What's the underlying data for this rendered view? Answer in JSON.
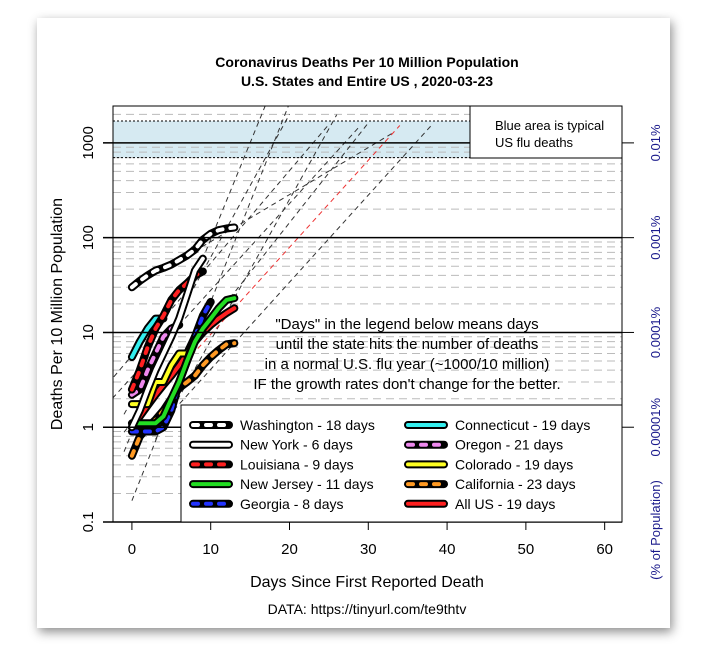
{
  "chart_data": {
    "type": "line",
    "title": "Coronavirus Deaths Per 10 Million Population",
    "subtitle": "U.S. States and Entire US , 2020-03-23",
    "xlabel": "Days Since First Reported Death",
    "ylabel": "Deaths Per 10 Million Population",
    "y2label": "(% of Population)",
    "source": "DATA: https://tinyurl.com/te9thtv",
    "yscale": "log",
    "xlim": [
      -2.4,
      62.2
    ],
    "ylim": [
      0.1,
      2450
    ],
    "x_ticks": [
      "0",
      "10",
      "20",
      "30",
      "40",
      "50",
      "60"
    ],
    "y_ticks": [
      "0.1",
      "1",
      "10",
      "100",
      "1000"
    ],
    "y2_ticks": [
      {
        "value": 1000,
        "label": "0.01%"
      },
      {
        "value": 100,
        "label": "0.001%"
      },
      {
        "value": 10,
        "label": "0.0001%"
      },
      {
        "value": 1,
        "label": "0.00001%"
      }
    ],
    "flu_band": [
      700,
      1700
    ],
    "flu_band_color": "#d6eaf2",
    "flu_note": [
      "Blue area is typical",
      "US flu deaths"
    ],
    "annotation": [
      "\"Days\" in the legend below means days",
      "until the state hits the number of deaths",
      "in a normal U.S. flu year (~1000/10 million)",
      "IF the growth rates don't change for the better."
    ],
    "projection_target": 1000,
    "grid": true,
    "legend_position": "bottom-right",
    "series": [
      {
        "name": "Washington - 18 days",
        "days": 18,
        "color": "#ffffff",
        "style": "dashed",
        "values": [
          30,
          35,
          40,
          45,
          48,
          52,
          58,
          65,
          75,
          95,
          110,
          120,
          125,
          128
        ]
      },
      {
        "name": "New York - 6 days",
        "days": 6,
        "color": "#ffffff",
        "style": "solid",
        "values": [
          1,
          1.5,
          2.5,
          4,
          6,
          9,
          14,
          25,
          45,
          60
        ]
      },
      {
        "name": "Louisiana - 9 days",
        "days": 9,
        "color": "#ff2020",
        "style": "dashed",
        "values": [
          2.5,
          4,
          7,
          11,
          15,
          22,
          28,
          33,
          40,
          44
        ]
      },
      {
        "name": "New Jersey - 11 days",
        "days": 11,
        "color": "#22dd22",
        "style": "solid",
        "values": [
          1.1,
          1.1,
          1.1,
          1.1,
          1.3,
          2,
          3,
          5,
          8,
          11,
          14,
          18,
          22,
          23
        ]
      },
      {
        "name": "Georgia - 8 days",
        "days": 8,
        "color": "#2233ff",
        "style": "dashed",
        "values": [
          0.9,
          0.9,
          0.9,
          0.9,
          1,
          1.5,
          3,
          5,
          9,
          15,
          21
        ]
      },
      {
        "name": "Connecticut - 19 days",
        "days": 19,
        "color": "#33eeee",
        "style": "solid",
        "values": [
          5.5,
          8,
          11,
          14,
          14
        ]
      },
      {
        "name": "Oregon - 21 days",
        "days": 21,
        "color": "#ee88ee",
        "style": "dashed",
        "values": [
          2.2,
          2.5,
          4,
          6,
          9,
          11,
          12
        ]
      },
      {
        "name": "Colorado - 19 days",
        "days": 19,
        "color": "#ffff22",
        "style": "solid",
        "values": [
          1.75,
          1.75,
          1.75,
          3,
          3,
          4.5,
          6,
          6,
          9,
          10
        ]
      },
      {
        "name": "California - 23 days",
        "days": 23,
        "color": "#ff9922",
        "style": "dashed",
        "values": [
          0.5,
          0.8,
          1,
          1.2,
          1.5,
          2,
          2.6,
          3,
          3.5,
          4.5,
          5.5,
          6.5,
          7.5,
          7.7
        ]
      },
      {
        "name": "All US - 19 days",
        "days": 19,
        "color": "#ff2020",
        "style": "solid",
        "values": [
          1,
          1.3,
          1.7,
          2.2,
          2.8,
          3.5,
          4.5,
          6,
          8,
          10,
          12,
          14,
          16,
          18
        ]
      }
    ]
  }
}
